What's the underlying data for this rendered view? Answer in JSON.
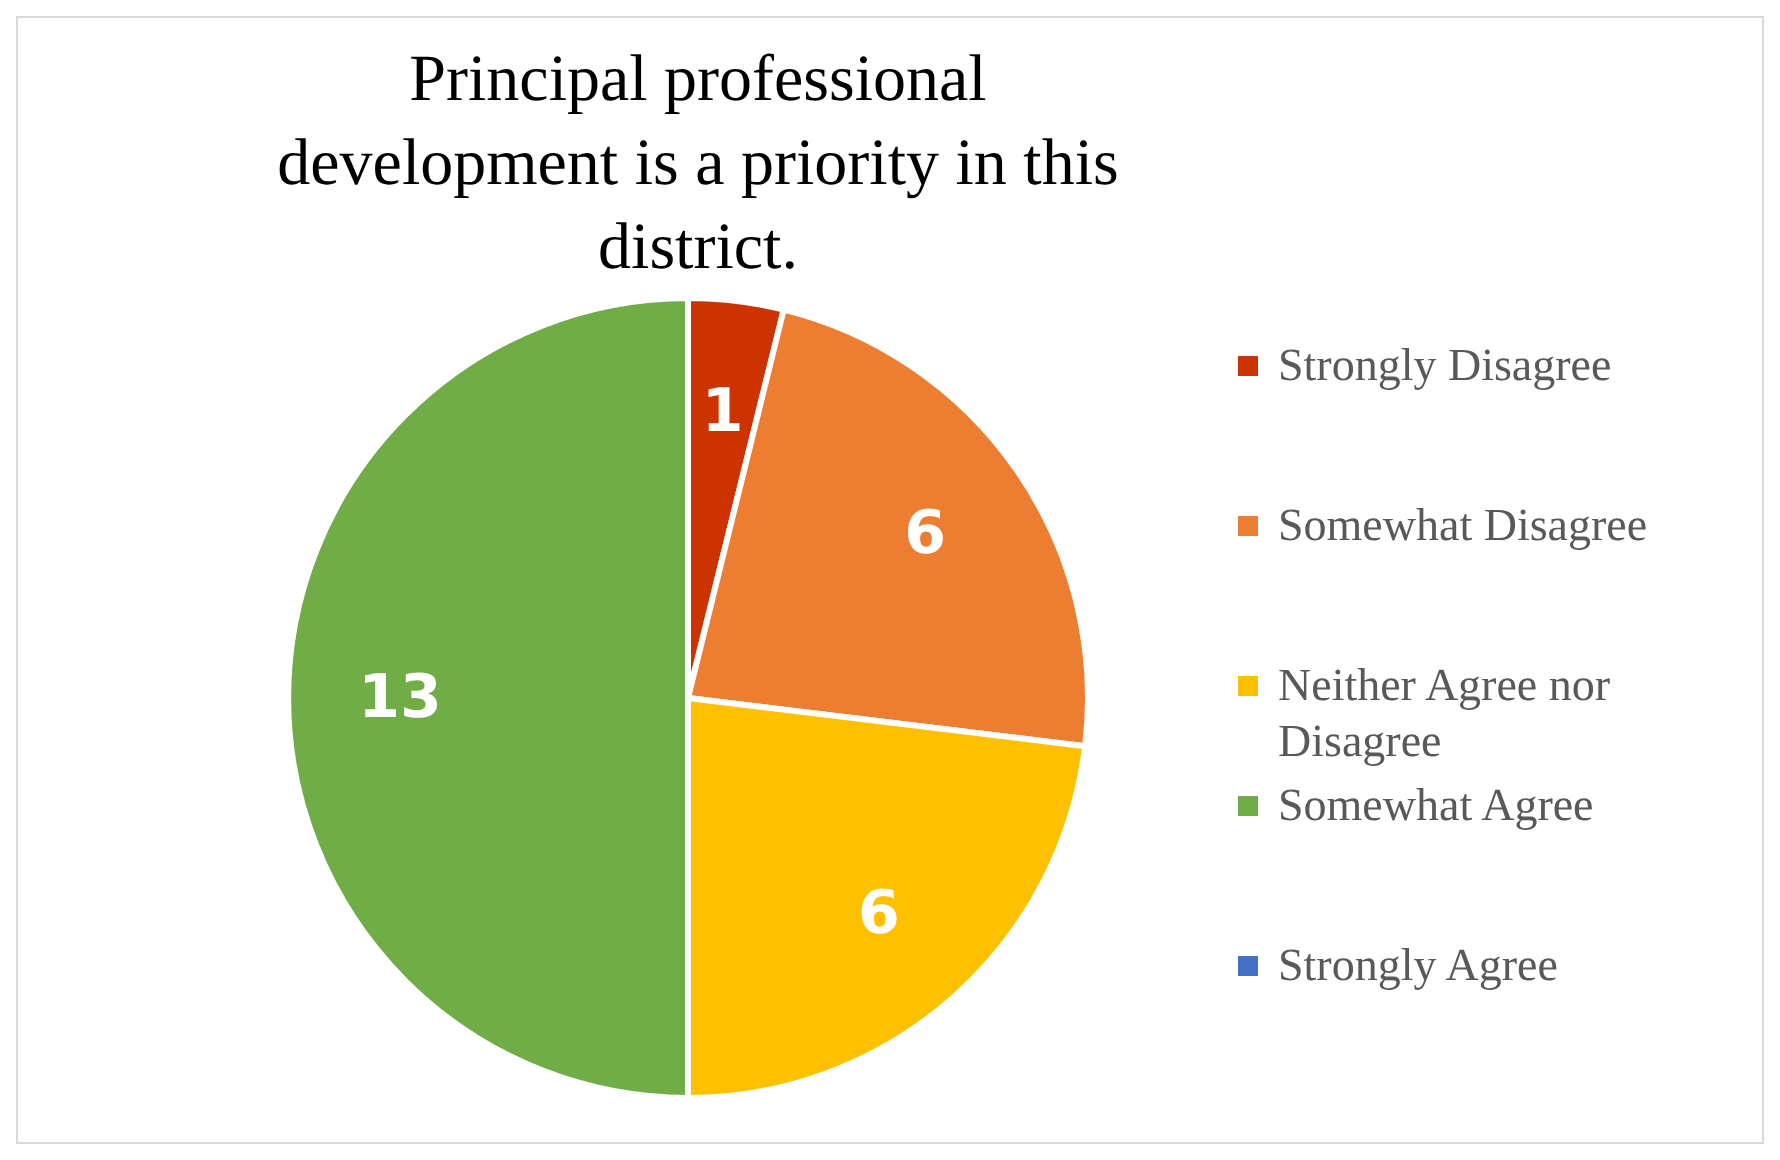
{
  "chart_data": {
    "type": "pie",
    "title": "Principal professional development is a priority in this district.",
    "categories": [
      "Strongly Disagree",
      "Somewhat Disagree",
      "Neither Agree nor Disagree",
      "Somewhat Agree",
      "Strongly Agree"
    ],
    "values": [
      1,
      6,
      6,
      13,
      0
    ],
    "colors": [
      "#cc3300",
      "#ed7d31",
      "#ffc000",
      "#70ad47",
      "#4472c4"
    ],
    "value_labels": [
      "1",
      "6",
      "6",
      "13",
      null
    ],
    "legend": "right"
  }
}
